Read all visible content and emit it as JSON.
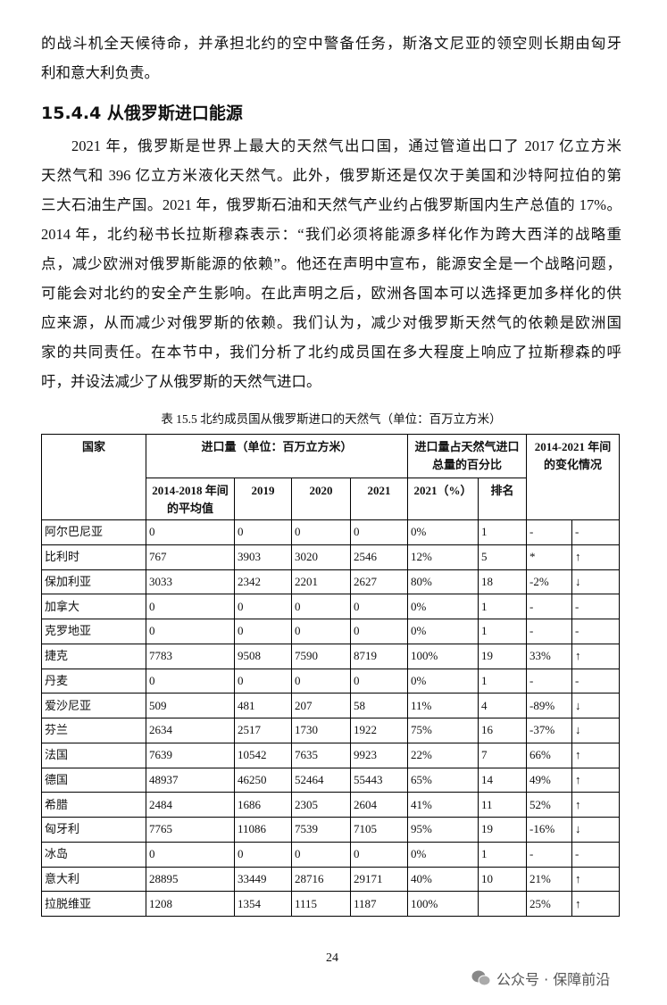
{
  "body": {
    "paragraph_1": [
      "的战斗机全天候待命，并承担北约的空中警备任务，斯洛文尼亚的领空则长期由匈牙",
      "利和意大利负责。"
    ],
    "heading": "15.4.4 从俄罗斯进口能源",
    "paragraph_2": [
      "2021 年，俄罗斯是世界上最大的天然气出口国，通过管道出口了 2017 亿立方米",
      "天然气和 396 亿立方米液化天然气。此外，俄罗斯还是仅次于美国和沙特阿拉伯的第",
      "三大石油生产国。2021 年，俄罗斯石油和天然气产业约占俄罗斯国内生产总值的 17%。",
      "2014 年，北约秘书长拉斯穆森表示：“我们必须将能源多样化作为跨大西洋的战略重",
      "点，减少欧洲对俄罗斯能源的依赖”。他还在声明中宣布，能源安全是一个战略问题，",
      "可能会对北约的安全产生影响。在此声明之后，欧洲各国本可以选择更加多样化的供",
      "应来源，从而减少对俄罗斯的依赖。我们认为，减少对俄罗斯天然气的依赖是欧洲国",
      "家的共同责任。在本节中，我们分析了北约成员国在多大程度上响应了拉斯穆森的呼",
      "吁，并设法减少了从俄罗斯的天然气进口。"
    ],
    "caption": "表 15.5 北约成员国从俄罗斯进口的天然气（单位：百万立方米）"
  },
  "table": {
    "header": {
      "country": "国家",
      "imports": "进口量（单位：百万立方米）",
      "share": "进口量占天然气进口总量的百分比",
      "change": "2014-2021 年间的变化情况",
      "sub": [
        "2014-2018 年间的平均值",
        "2019",
        "2020",
        "2021",
        "2021（%）",
        "排名"
      ]
    },
    "rows": [
      [
        "阿尔巴尼亚",
        "0",
        "0",
        "0",
        "0",
        "0%",
        "1",
        "-",
        "-"
      ],
      [
        "比利时",
        "767",
        "3903",
        "3020",
        "2546",
        "12%",
        "5",
        "*",
        "↑"
      ],
      [
        "保加利亚",
        "3033",
        "2342",
        "2201",
        "2627",
        "80%",
        "18",
        "-2%",
        "↓"
      ],
      [
        "加拿大",
        "0",
        "0",
        "0",
        "0",
        "0%",
        "1",
        "-",
        "-"
      ],
      [
        "克罗地亚",
        "0",
        "0",
        "0",
        "0",
        "0%",
        "1",
        "-",
        "-"
      ],
      [
        "捷克",
        "7783",
        "9508",
        "7590",
        "8719",
        "100%",
        "19",
        "33%",
        "↑"
      ],
      [
        "丹麦",
        "0",
        "0",
        "0",
        "0",
        "0%",
        "1",
        "-",
        "-"
      ],
      [
        "爱沙尼亚",
        "509",
        "481",
        "207",
        "58",
        "11%",
        "4",
        "-89%",
        "↓"
      ],
      [
        "芬兰",
        "2634",
        "2517",
        "1730",
        "1922",
        "75%",
        "16",
        "-37%",
        "↓"
      ],
      [
        "法国",
        "7639",
        "10542",
        "7635",
        "9923",
        "22%",
        "7",
        "66%",
        "↑"
      ],
      [
        "德国",
        "48937",
        "46250",
        "52464",
        "55443",
        "65%",
        "14",
        "49%",
        "↑"
      ],
      [
        "希腊",
        "2484",
        "1686",
        "2305",
        "2604",
        "41%",
        "11",
        "52%",
        "↑"
      ],
      [
        "匈牙利",
        "7765",
        "11086",
        "7539",
        "7105",
        "95%",
        "19",
        "-16%",
        "↓"
      ],
      [
        "冰岛",
        "0",
        "0",
        "0",
        "0",
        "0%",
        "1",
        "-",
        "-"
      ],
      [
        "意大利",
        "28895",
        "33449",
        "28716",
        "29171",
        "40%",
        "10",
        "21%",
        "↑"
      ],
      [
        "拉脱维亚",
        "1208",
        "1354",
        "1115",
        "1187",
        "100%",
        null,
        "25%",
        "↑"
      ]
    ]
  },
  "footer": {
    "page_number": "24",
    "watermark": "公众号 · 保障前沿"
  }
}
